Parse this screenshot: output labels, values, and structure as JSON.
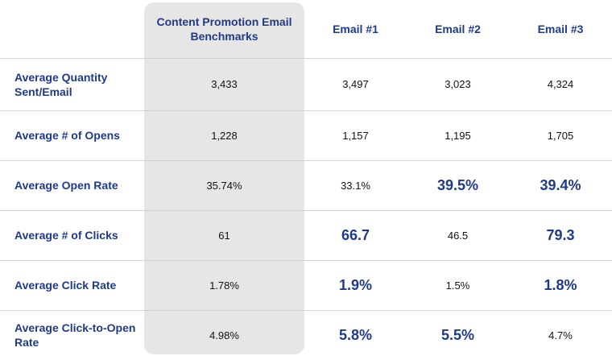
{
  "chart_data": {
    "type": "table",
    "columns": [
      "",
      "Content Promotion Email Benchmarks",
      "Email #1",
      "Email #2",
      "Email #3"
    ],
    "rows": [
      {
        "label": "Average Quantity Sent/Email",
        "values": [
          "3,433",
          "3,497",
          "3,023",
          "4,324"
        ],
        "highlight": [
          false,
          false,
          false,
          false
        ]
      },
      {
        "label": "Average # of Opens",
        "values": [
          "1,228",
          "1,157",
          "1,195",
          "1,705"
        ],
        "highlight": [
          false,
          false,
          false,
          false
        ]
      },
      {
        "label": "Average Open Rate",
        "values": [
          "35.74%",
          "33.1%",
          "39.5%",
          "39.4%"
        ],
        "highlight": [
          false,
          false,
          true,
          true
        ]
      },
      {
        "label": "Average # of Clicks",
        "values": [
          "61",
          "66.7",
          "46.5",
          "79.3"
        ],
        "highlight": [
          false,
          true,
          false,
          true
        ]
      },
      {
        "label": "Average Click Rate",
        "values": [
          "1.78%",
          "1.9%",
          "1.5%",
          "1.8%"
        ],
        "highlight": [
          false,
          true,
          false,
          true
        ]
      },
      {
        "label": "Average Click-to-Open Rate",
        "values": [
          "4.98%",
          "5.8%",
          "5.5%",
          "4.7%"
        ],
        "highlight": [
          false,
          true,
          true,
          false
        ]
      }
    ],
    "colors": {
      "heading": "#1f3a8a",
      "benchmark_column_bg": "#e6e6e6",
      "row_divider": "#d4d4d4"
    }
  }
}
